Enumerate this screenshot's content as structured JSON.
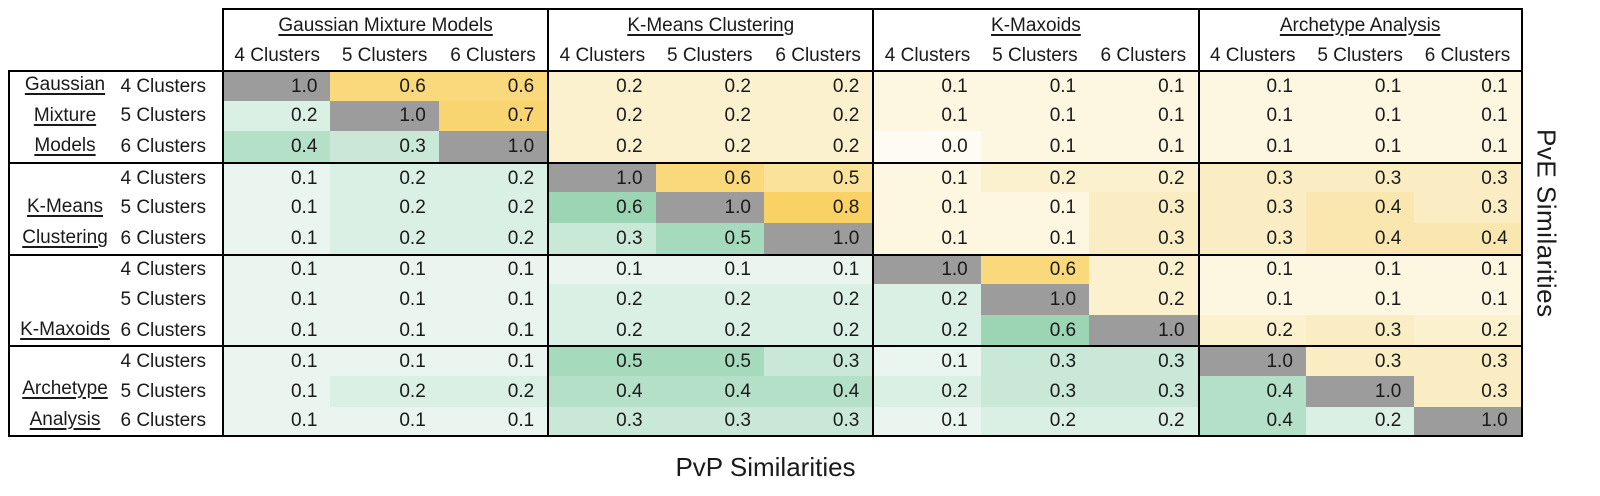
{
  "table": {
    "col_groups": [
      {
        "label": "Gaussian Mixture Models"
      },
      {
        "label": "K-Means Clustering"
      },
      {
        "label": "K-Maxoids"
      },
      {
        "label": "Archetype Analysis"
      }
    ],
    "row_groups": [
      {
        "label_lines": [
          "Gaussian",
          "Mixture",
          "Models"
        ]
      },
      {
        "label_lines": [
          "K-Means",
          "Clustering"
        ]
      },
      {
        "label_lines": [
          "K-Maxoids"
        ]
      },
      {
        "label_lines": [
          "Archetype",
          "Analysis"
        ]
      }
    ],
    "sub_labels": [
      "4 Clusters",
      "5 Clusters",
      "6 Clusters"
    ]
  },
  "axis_labels": {
    "right_vertical": "PvE Similarities",
    "bottom": "PvP Similarities"
  },
  "colors": {
    "diagonal": "#9C9C9C",
    "border": "#000000",
    "text": "#1A1A1A",
    "pve_scale": {
      "0.0": "#FEFCF2",
      "0.1": "#FDF7E1",
      "0.2": "#FBF1CE",
      "0.3": "#FAEDC3",
      "0.4": "#FAE7AF",
      "0.5": "#FBE29B",
      "0.6": "#FAD97D",
      "0.7": "#F9D571",
      "0.8": "#F9D164",
      "1.0": "#9C9C9C"
    },
    "pvp_scale": {
      "0.0": "#F2FAF5",
      "0.1": "#EAF5EF",
      "0.2": "#DBF0E4",
      "0.3": "#C9E8D7",
      "0.4": "#B5E0C8",
      "0.5": "#A5DABC",
      "0.6": "#9BD5B3",
      "1.0": "#9C9C9C"
    }
  },
  "chart_data": {
    "type": "heatmap",
    "title": "",
    "upper_triangle_label": "PvE Similarities",
    "lower_triangle_label": "PvP Similarities",
    "value_range": [
      0.0,
      1.0
    ],
    "method_groups": [
      "Gaussian Mixture Models",
      "K-Means Clustering",
      "K-Maxoids",
      "Archetype Analysis"
    ],
    "cluster_counts_per_group": [
      "4 Clusters",
      "5 Clusters",
      "6 Clusters"
    ],
    "labels": [
      "Gaussian Mixture Models 4 Clusters",
      "Gaussian Mixture Models 5 Clusters",
      "Gaussian Mixture Models 6 Clusters",
      "K-Means Clustering 4 Clusters",
      "K-Means Clustering 5 Clusters",
      "K-Means Clustering 6 Clusters",
      "K-Maxoids 4 Clusters",
      "K-Maxoids 5 Clusters",
      "K-Maxoids 6 Clusters",
      "Archetype Analysis 4 Clusters",
      "Archetype Analysis 5 Clusters",
      "Archetype Analysis 6 Clusters"
    ],
    "matrix": [
      [
        1.0,
        0.6,
        0.6,
        0.2,
        0.2,
        0.2,
        0.1,
        0.1,
        0.1,
        0.1,
        0.1,
        0.1
      ],
      [
        0.2,
        1.0,
        0.7,
        0.2,
        0.2,
        0.2,
        0.1,
        0.1,
        0.1,
        0.1,
        0.1,
        0.1
      ],
      [
        0.4,
        0.3,
        1.0,
        0.2,
        0.2,
        0.2,
        0.0,
        0.1,
        0.1,
        0.1,
        0.1,
        0.1
      ],
      [
        0.1,
        0.2,
        0.2,
        1.0,
        0.6,
        0.5,
        0.1,
        0.2,
        0.2,
        0.3,
        0.3,
        0.3
      ],
      [
        0.1,
        0.2,
        0.2,
        0.6,
        1.0,
        0.8,
        0.1,
        0.1,
        0.3,
        0.3,
        0.4,
        0.3
      ],
      [
        0.1,
        0.2,
        0.2,
        0.3,
        0.5,
        1.0,
        0.1,
        0.1,
        0.3,
        0.3,
        0.4,
        0.4
      ],
      [
        0.1,
        0.1,
        0.1,
        0.1,
        0.1,
        0.1,
        1.0,
        0.6,
        0.2,
        0.1,
        0.1,
        0.1
      ],
      [
        0.1,
        0.1,
        0.1,
        0.2,
        0.2,
        0.2,
        0.2,
        1.0,
        0.2,
        0.1,
        0.1,
        0.1
      ],
      [
        0.1,
        0.1,
        0.1,
        0.2,
        0.2,
        0.2,
        0.2,
        0.6,
        1.0,
        0.2,
        0.3,
        0.2
      ],
      [
        0.1,
        0.1,
        0.1,
        0.5,
        0.5,
        0.3,
        0.1,
        0.3,
        0.3,
        1.0,
        0.3,
        0.3
      ],
      [
        0.1,
        0.2,
        0.2,
        0.4,
        0.4,
        0.4,
        0.2,
        0.3,
        0.3,
        0.4,
        1.0,
        0.3
      ],
      [
        0.1,
        0.1,
        0.1,
        0.3,
        0.3,
        0.3,
        0.1,
        0.2,
        0.2,
        0.4,
        0.2,
        1.0
      ]
    ]
  }
}
